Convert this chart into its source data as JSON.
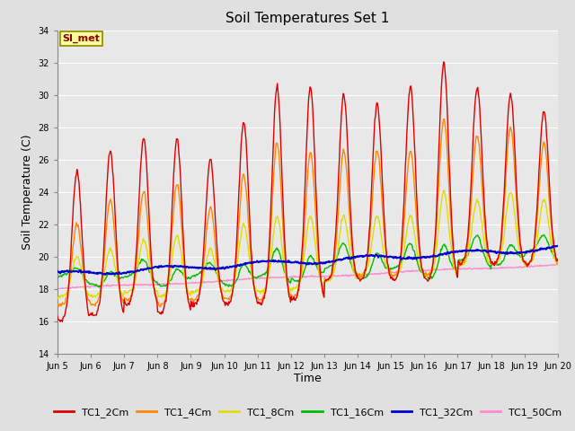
{
  "title": "Soil Temperatures Set 1",
  "xlabel": "Time",
  "ylabel": "Soil Temperature (C)",
  "ylim": [
    14,
    34
  ],
  "yticks": [
    14,
    16,
    18,
    20,
    22,
    24,
    26,
    28,
    30,
    32,
    34
  ],
  "background_color": "#e0e0e0",
  "plot_bg_color": "#e8e8e8",
  "grid_color": "#ffffff",
  "series": {
    "TC1_2Cm": {
      "color": "#dd0000",
      "linewidth": 1.0
    },
    "TC1_4Cm": {
      "color": "#ff8800",
      "linewidth": 1.0
    },
    "TC1_8Cm": {
      "color": "#dddd00",
      "linewidth": 1.0
    },
    "TC1_16Cm": {
      "color": "#00bb00",
      "linewidth": 1.0
    },
    "TC1_32Cm": {
      "color": "#0000cc",
      "linewidth": 1.5
    },
    "TC1_50Cm": {
      "color": "#ff88cc",
      "linewidth": 1.0
    }
  },
  "annotation_text": "SI_met",
  "annotation_color": "#880000",
  "annotation_bg": "#ffff99",
  "annotation_border": "#888800",
  "day_labels": [
    "Jun 5",
    "Jun 6",
    "Jun 7",
    "Jun 8",
    "Jun 9",
    "Jun 10",
    "Jun 11",
    "Jun 12",
    "Jun 13",
    "Jun 14",
    "Jun 15",
    "Jun 16",
    "Jun 17",
    "Jun 18",
    "Jun 19",
    "Jun 20"
  ],
  "n_days": 15,
  "n_per_day": 48
}
